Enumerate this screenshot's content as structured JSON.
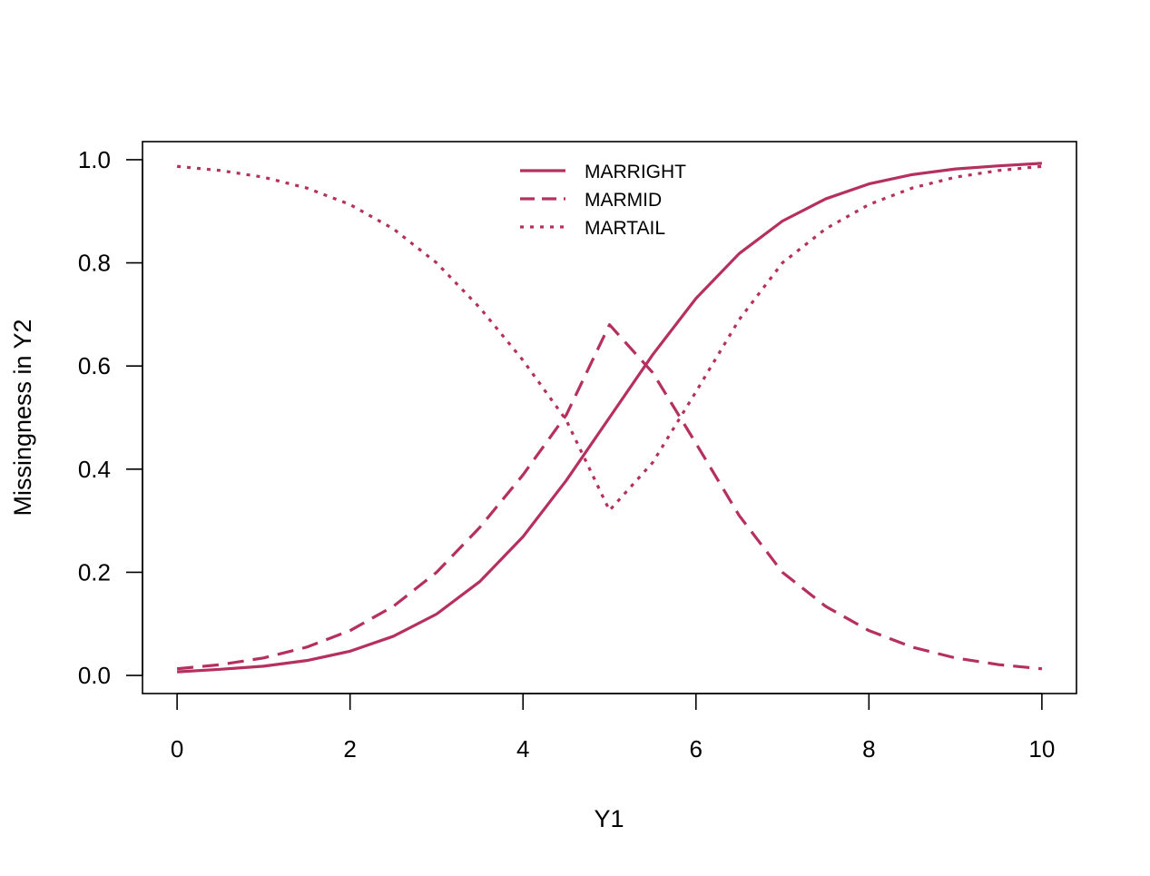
{
  "chart_data": {
    "type": "line",
    "title": "",
    "xlabel": "Y1",
    "ylabel": "Missingness in Y2",
    "xlim": [
      -0.4,
      10.4
    ],
    "ylim": [
      -0.035,
      1.035
    ],
    "xticks": [
      0,
      2,
      4,
      6,
      8,
      10
    ],
    "xtick_labels": [
      "0",
      "2",
      "4",
      "6",
      "8",
      "10"
    ],
    "yticks": [
      0.0,
      0.2,
      0.4,
      0.6,
      0.8,
      1.0
    ],
    "ytick_labels": [
      "0.0",
      "0.2",
      "0.4",
      "0.6",
      "0.8",
      "1.0"
    ],
    "grid": false,
    "legend_position": "top-center",
    "line_color": "#B5305F",
    "x": [
      0,
      0.5,
      1,
      1.5,
      2,
      2.5,
      3,
      3.5,
      4,
      4.5,
      5,
      5.5,
      6,
      6.5,
      7,
      7.5,
      8,
      8.5,
      9,
      9.5,
      10
    ],
    "series": [
      {
        "name": "MARRIGHT",
        "line_style": "solid",
        "values": [
          0.007,
          0.012,
          0.018,
          0.029,
          0.047,
          0.076,
          0.119,
          0.182,
          0.269,
          0.378,
          0.5,
          0.622,
          0.731,
          0.818,
          0.881,
          0.924,
          0.953,
          0.971,
          0.982,
          0.988,
          0.993
        ]
      },
      {
        "name": "MARMID",
        "line_style": "dashed",
        "values": [
          0.013,
          0.021,
          0.034,
          0.055,
          0.087,
          0.134,
          0.2,
          0.287,
          0.389,
          0.505,
          0.68,
          0.587,
          0.45,
          0.31,
          0.2,
          0.134,
          0.087,
          0.055,
          0.034,
          0.021,
          0.013
        ]
      },
      {
        "name": "MARTAIL",
        "line_style": "dotted",
        "values": [
          0.987,
          0.979,
          0.966,
          0.945,
          0.913,
          0.866,
          0.8,
          0.713,
          0.611,
          0.495,
          0.32,
          0.413,
          0.55,
          0.69,
          0.8,
          0.866,
          0.913,
          0.945,
          0.966,
          0.979,
          0.987
        ]
      }
    ]
  }
}
